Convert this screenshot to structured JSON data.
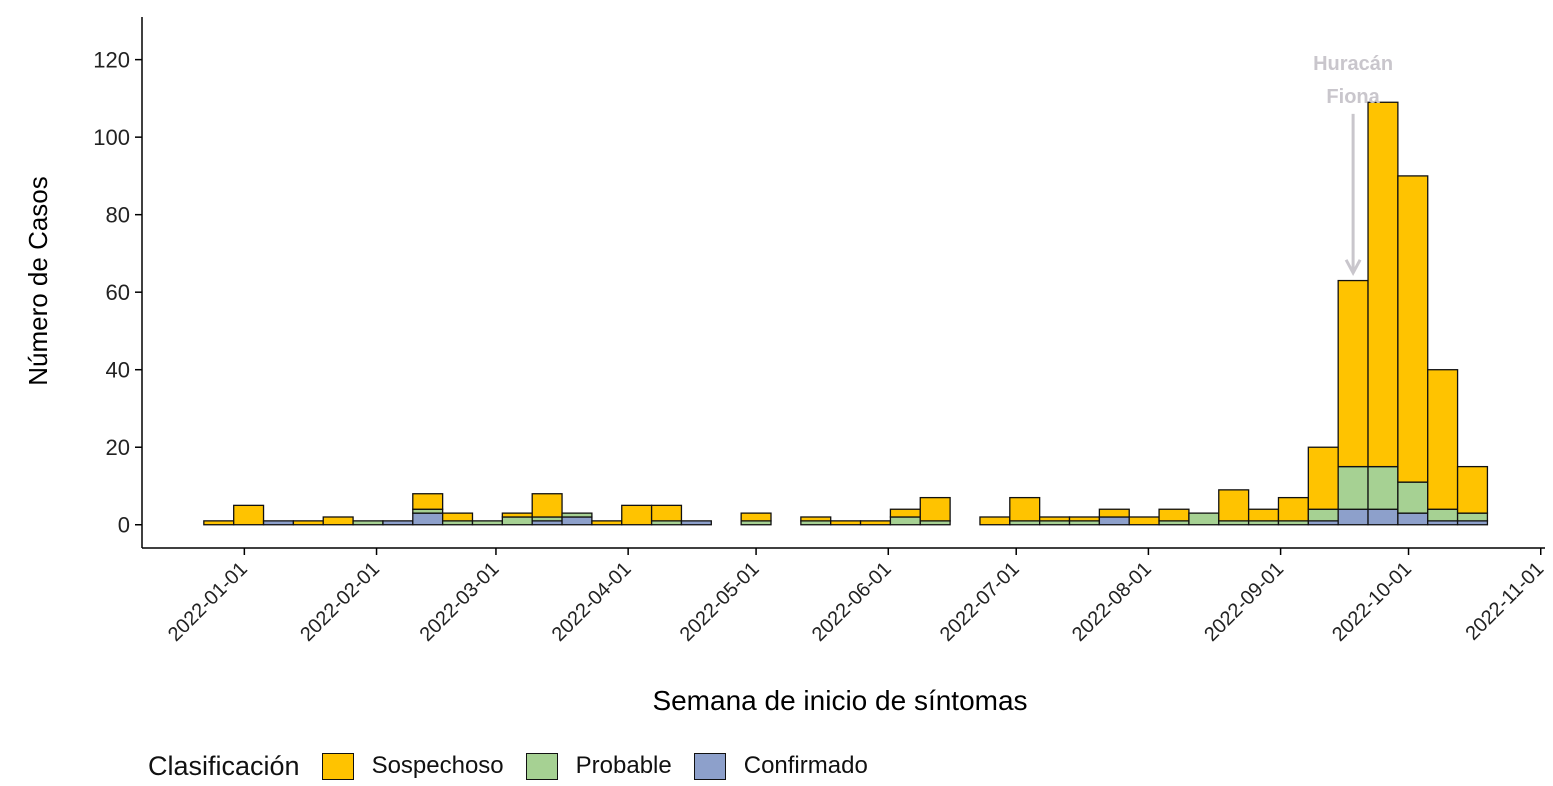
{
  "chart_data": {
    "type": "bar",
    "stacked": true,
    "title": "",
    "xlabel": "Semana de inicio de síntomas",
    "ylabel": "Número de Casos",
    "ylim": [
      -6,
      131
    ],
    "yticks": [
      0,
      20,
      40,
      60,
      80,
      100,
      120
    ],
    "x_type": "date",
    "xlim": [
      "2021-12-08",
      "2022-11-02"
    ],
    "xticks": [
      "2022-01-01",
      "2022-02-01",
      "2022-03-01",
      "2022-04-01",
      "2022-05-01",
      "2022-06-01",
      "2022-07-01",
      "2022-08-01",
      "2022-09-01",
      "2022-10-01",
      "2022-11-01"
    ],
    "colors": {
      "Confirmado": "#8da0cb",
      "Probable": "#a6d193",
      "Sospechoso": "#ffc300"
    },
    "series_order": [
      "Confirmado",
      "Probable",
      "Sospechoso"
    ],
    "weeks": [
      {
        "week": "2021-12-26",
        "Confirmado": 0,
        "Probable": 0,
        "Sospechoso": 1
      },
      {
        "week": "2022-01-02",
        "Confirmado": 0,
        "Probable": 0,
        "Sospechoso": 5
      },
      {
        "week": "2022-01-09",
        "Confirmado": 1,
        "Probable": 0,
        "Sospechoso": 0
      },
      {
        "week": "2022-01-16",
        "Confirmado": 0,
        "Probable": 0,
        "Sospechoso": 1
      },
      {
        "week": "2022-01-23",
        "Confirmado": 0,
        "Probable": 0,
        "Sospechoso": 2
      },
      {
        "week": "2022-01-30",
        "Confirmado": 0,
        "Probable": 1,
        "Sospechoso": 0
      },
      {
        "week": "2022-02-06",
        "Confirmado": 1,
        "Probable": 0,
        "Sospechoso": 0
      },
      {
        "week": "2022-02-13",
        "Confirmado": 3,
        "Probable": 1,
        "Sospechoso": 4
      },
      {
        "week": "2022-02-20",
        "Confirmado": 0,
        "Probable": 1,
        "Sospechoso": 2
      },
      {
        "week": "2022-02-27",
        "Confirmado": 0,
        "Probable": 1,
        "Sospechoso": 0
      },
      {
        "week": "2022-03-06",
        "Confirmado": 0,
        "Probable": 2,
        "Sospechoso": 1
      },
      {
        "week": "2022-03-13",
        "Confirmado": 1,
        "Probable": 1,
        "Sospechoso": 6
      },
      {
        "week": "2022-03-20",
        "Confirmado": 2,
        "Probable": 1,
        "Sospechoso": 0
      },
      {
        "week": "2022-03-27",
        "Confirmado": 0,
        "Probable": 0,
        "Sospechoso": 1
      },
      {
        "week": "2022-04-03",
        "Confirmado": 0,
        "Probable": 0,
        "Sospechoso": 5
      },
      {
        "week": "2022-04-10",
        "Confirmado": 0,
        "Probable": 1,
        "Sospechoso": 4
      },
      {
        "week": "2022-04-17",
        "Confirmado": 1,
        "Probable": 0,
        "Sospechoso": 0
      },
      {
        "week": "2022-05-01",
        "Confirmado": 0,
        "Probable": 1,
        "Sospechoso": 2
      },
      {
        "week": "2022-05-15",
        "Confirmado": 0,
        "Probable": 1,
        "Sospechoso": 1
      },
      {
        "week": "2022-05-22",
        "Confirmado": 0,
        "Probable": 0,
        "Sospechoso": 1
      },
      {
        "week": "2022-05-29",
        "Confirmado": 0,
        "Probable": 0,
        "Sospechoso": 1
      },
      {
        "week": "2022-06-05",
        "Confirmado": 0,
        "Probable": 2,
        "Sospechoso": 2
      },
      {
        "week": "2022-06-12",
        "Confirmado": 0,
        "Probable": 1,
        "Sospechoso": 6
      },
      {
        "week": "2022-06-26",
        "Confirmado": 0,
        "Probable": 0,
        "Sospechoso": 2
      },
      {
        "week": "2022-07-03",
        "Confirmado": 0,
        "Probable": 1,
        "Sospechoso": 6
      },
      {
        "week": "2022-07-10",
        "Confirmado": 0,
        "Probable": 1,
        "Sospechoso": 1
      },
      {
        "week": "2022-07-17",
        "Confirmado": 0,
        "Probable": 1,
        "Sospechoso": 1
      },
      {
        "week": "2022-07-24",
        "Confirmado": 2,
        "Probable": 0,
        "Sospechoso": 2
      },
      {
        "week": "2022-07-31",
        "Confirmado": 0,
        "Probable": 0,
        "Sospechoso": 2
      },
      {
        "week": "2022-08-07",
        "Confirmado": 0,
        "Probable": 1,
        "Sospechoso": 3
      },
      {
        "week": "2022-08-14",
        "Confirmado": 0,
        "Probable": 3,
        "Sospechoso": 0
      },
      {
        "week": "2022-08-21",
        "Confirmado": 0,
        "Probable": 1,
        "Sospechoso": 8
      },
      {
        "week": "2022-08-28",
        "Confirmado": 0,
        "Probable": 1,
        "Sospechoso": 3
      },
      {
        "week": "2022-09-04",
        "Confirmado": 0,
        "Probable": 1,
        "Sospechoso": 6
      },
      {
        "week": "2022-09-11",
        "Confirmado": 1,
        "Probable": 3,
        "Sospechoso": 16
      },
      {
        "week": "2022-09-18",
        "Confirmado": 4,
        "Probable": 11,
        "Sospechoso": 48
      },
      {
        "week": "2022-09-25",
        "Confirmado": 4,
        "Probable": 11,
        "Sospechoso": 94
      },
      {
        "week": "2022-10-02",
        "Confirmado": 3,
        "Probable": 8,
        "Sospechoso": 79
      },
      {
        "week": "2022-10-09",
        "Confirmado": 1,
        "Probable": 3,
        "Sospechoso": 36
      },
      {
        "week": "2022-10-16",
        "Confirmado": 1,
        "Probable": 2,
        "Sospechoso": 12
      }
    ],
    "annotation": {
      "lines": [
        "Huracán",
        "Fiona"
      ],
      "date": "2022-09-18",
      "arrow_from_y": 106,
      "arrow_to_y": 65,
      "color": "#c9c6cc"
    },
    "legend": {
      "title": "Clasificación",
      "position": "bottom",
      "items": [
        "Sospechoso",
        "Probable",
        "Confirmado"
      ]
    }
  }
}
